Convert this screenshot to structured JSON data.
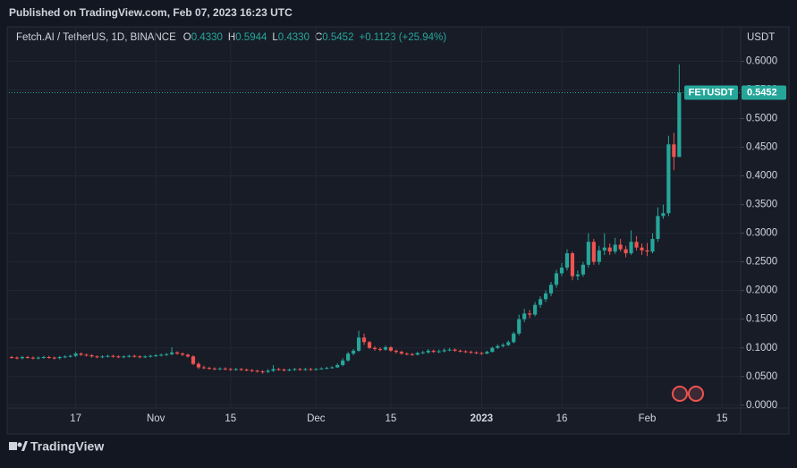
{
  "header": {
    "published": "Published on TradingView.com, Feb 07, 2023 16:23 UTC"
  },
  "footer": {
    "brand": "TradingView"
  },
  "chart_data": {
    "type": "candlestick",
    "title": "Fetch.AI / TetherUS, 1D, BINANCE",
    "legend_keys": [
      "O",
      "H",
      "L",
      "C"
    ],
    "legend_values": [
      "0.4330",
      "0.5944",
      "0.4330",
      "0.5452"
    ],
    "change": "+0.1123 (+25.94%)",
    "symbol": "FETUSDT",
    "last_price_label": "0.5452",
    "y_axis_label": "USDT",
    "up_color": "#26a69a",
    "down_color": "#ef5350",
    "grid": true,
    "categories": [
      null,
      null,
      null,
      null,
      null,
      null,
      null,
      null,
      null,
      null,
      null,
      null,
      "17",
      null,
      null,
      null,
      null,
      null,
      null,
      null,
      null,
      null,
      null,
      null,
      null,
      null,
      null,
      "Nov",
      null,
      null,
      null,
      null,
      null,
      null,
      null,
      null,
      null,
      null,
      null,
      null,
      null,
      "15",
      null,
      null,
      null,
      null,
      null,
      null,
      null,
      null,
      null,
      null,
      null,
      null,
      null,
      null,
      null,
      "Dec",
      null,
      null,
      null,
      null,
      null,
      null,
      null,
      null,
      null,
      null,
      null,
      null,
      null,
      "15",
      null,
      null,
      null,
      null,
      null,
      null,
      null,
      null,
      null,
      null,
      null,
      null,
      null,
      null,
      null,
      null,
      "2023",
      null,
      null,
      null,
      null,
      null,
      null,
      null,
      null,
      null,
      null,
      null,
      null,
      null,
      null,
      "16",
      null,
      null,
      null,
      null,
      null,
      null,
      null,
      null,
      null,
      null,
      null,
      null,
      null,
      null,
      null,
      "Feb",
      null,
      null,
      null,
      null,
      null,
      null,
      null,
      null,
      null,
      null,
      null,
      null,
      null,
      "15",
      null,
      null,
      null
    ],
    "open": [
      0.084,
      0.083,
      0.082,
      0.084,
      0.083,
      0.082,
      0.083,
      0.084,
      0.083,
      0.082,
      0.084,
      0.085,
      0.086,
      0.09,
      0.088,
      0.087,
      0.085,
      0.084,
      0.085,
      0.086,
      0.085,
      0.084,
      0.085,
      0.086,
      0.085,
      0.084,
      0.085,
      0.086,
      0.087,
      0.088,
      0.089,
      0.092,
      0.09,
      0.088,
      0.085,
      0.072,
      0.066,
      0.065,
      0.064,
      0.063,
      0.064,
      0.063,
      0.062,
      0.063,
      0.062,
      0.061,
      0.06,
      0.059,
      0.058,
      0.06,
      0.063,
      0.062,
      0.061,
      0.062,
      0.063,
      0.062,
      0.063,
      0.062,
      0.063,
      0.064,
      0.065,
      0.066,
      0.07,
      0.078,
      0.09,
      0.095,
      0.118,
      0.11,
      0.1,
      0.098,
      0.097,
      0.101,
      0.095,
      0.093,
      0.09,
      0.089,
      0.088,
      0.091,
      0.092,
      0.095,
      0.093,
      0.094,
      0.096,
      0.097,
      0.095,
      0.094,
      0.093,
      0.092,
      0.091,
      0.09,
      0.093,
      0.1,
      0.103,
      0.105,
      0.11,
      0.125,
      0.15,
      0.16,
      0.158,
      0.175,
      0.185,
      0.195,
      0.21,
      0.23,
      0.24,
      0.265,
      0.225,
      0.228,
      0.245,
      0.285,
      0.25,
      0.27,
      0.275,
      0.268,
      0.28,
      0.272,
      0.265,
      0.285,
      0.275,
      0.27,
      0.268,
      0.29,
      0.33,
      0.335,
      0.455,
      0.433,
      null,
      null,
      null,
      null,
      null,
      null,
      null,
      null,
      null,
      null,
      null
    ],
    "high": [
      0.086,
      0.085,
      0.086,
      0.086,
      0.085,
      0.085,
      0.086,
      0.086,
      0.085,
      0.086,
      0.087,
      0.088,
      0.093,
      0.092,
      0.09,
      0.089,
      0.087,
      0.087,
      0.088,
      0.088,
      0.087,
      0.087,
      0.088,
      0.088,
      0.087,
      0.087,
      0.088,
      0.089,
      0.09,
      0.091,
      0.101,
      0.094,
      0.092,
      0.09,
      0.087,
      0.075,
      0.069,
      0.067,
      0.066,
      0.066,
      0.066,
      0.065,
      0.065,
      0.065,
      0.064,
      0.063,
      0.062,
      0.061,
      0.063,
      0.07,
      0.065,
      0.064,
      0.064,
      0.065,
      0.065,
      0.065,
      0.065,
      0.065,
      0.066,
      0.067,
      0.068,
      0.073,
      0.082,
      0.093,
      0.098,
      0.13,
      0.125,
      0.112,
      0.103,
      0.101,
      0.104,
      0.103,
      0.097,
      0.095,
      0.092,
      0.091,
      0.093,
      0.095,
      0.098,
      0.097,
      0.097,
      0.099,
      0.1,
      0.099,
      0.097,
      0.096,
      0.095,
      0.094,
      0.093,
      0.095,
      0.102,
      0.106,
      0.108,
      0.113,
      0.128,
      0.158,
      0.168,
      0.166,
      0.18,
      0.19,
      0.2,
      0.215,
      0.236,
      0.248,
      0.272,
      0.268,
      0.235,
      0.25,
      0.3,
      0.29,
      0.278,
      0.3,
      0.282,
      0.292,
      0.29,
      0.278,
      0.305,
      0.295,
      0.282,
      0.283,
      0.3,
      0.345,
      0.35,
      0.47,
      0.475,
      0.5944,
      null,
      null,
      null,
      null,
      null,
      null,
      null,
      null,
      null,
      null,
      null
    ],
    "low": [
      0.081,
      0.08,
      0.08,
      0.081,
      0.08,
      0.08,
      0.081,
      0.081,
      0.08,
      0.08,
      0.082,
      0.083,
      0.084,
      0.086,
      0.085,
      0.083,
      0.082,
      0.082,
      0.083,
      0.083,
      0.082,
      0.082,
      0.083,
      0.083,
      0.082,
      0.082,
      0.083,
      0.084,
      0.085,
      0.086,
      0.087,
      0.088,
      0.086,
      0.083,
      0.07,
      0.063,
      0.063,
      0.062,
      0.061,
      0.061,
      0.061,
      0.06,
      0.06,
      0.06,
      0.059,
      0.058,
      0.057,
      0.055,
      0.056,
      0.058,
      0.06,
      0.059,
      0.059,
      0.06,
      0.06,
      0.06,
      0.06,
      0.061,
      0.062,
      0.063,
      0.064,
      0.065,
      0.068,
      0.076,
      0.087,
      0.093,
      0.105,
      0.098,
      0.095,
      0.094,
      0.095,
      0.093,
      0.09,
      0.088,
      0.087,
      0.086,
      0.087,
      0.089,
      0.09,
      0.091,
      0.091,
      0.092,
      0.094,
      0.093,
      0.092,
      0.091,
      0.09,
      0.089,
      0.088,
      0.089,
      0.092,
      0.098,
      0.101,
      0.103,
      0.108,
      0.122,
      0.145,
      0.152,
      0.155,
      0.17,
      0.18,
      0.19,
      0.205,
      0.225,
      0.235,
      0.218,
      0.218,
      0.224,
      0.24,
      0.245,
      0.245,
      0.262,
      0.262,
      0.264,
      0.268,
      0.258,
      0.262,
      0.27,
      0.262,
      0.26,
      0.265,
      0.285,
      0.325,
      0.33,
      0.41,
      0.433,
      null,
      null,
      null,
      null,
      null,
      null,
      null,
      null,
      null,
      null,
      null
    ],
    "close": [
      0.083,
      0.082,
      0.084,
      0.083,
      0.082,
      0.083,
      0.084,
      0.083,
      0.082,
      0.084,
      0.085,
      0.086,
      0.09,
      0.088,
      0.087,
      0.085,
      0.084,
      0.085,
      0.086,
      0.085,
      0.084,
      0.085,
      0.086,
      0.085,
      0.084,
      0.085,
      0.086,
      0.087,
      0.088,
      0.089,
      0.092,
      0.09,
      0.088,
      0.085,
      0.072,
      0.066,
      0.065,
      0.064,
      0.063,
      0.064,
      0.063,
      0.062,
      0.063,
      0.062,
      0.061,
      0.06,
      0.059,
      0.058,
      0.06,
      0.063,
      0.062,
      0.061,
      0.062,
      0.063,
      0.062,
      0.063,
      0.062,
      0.063,
      0.064,
      0.065,
      0.066,
      0.07,
      0.078,
      0.09,
      0.095,
      0.118,
      0.11,
      0.1,
      0.098,
      0.097,
      0.101,
      0.095,
      0.093,
      0.09,
      0.089,
      0.088,
      0.091,
      0.092,
      0.095,
      0.093,
      0.094,
      0.096,
      0.097,
      0.095,
      0.094,
      0.093,
      0.092,
      0.091,
      0.09,
      0.093,
      0.1,
      0.103,
      0.105,
      0.11,
      0.125,
      0.15,
      0.16,
      0.158,
      0.175,
      0.185,
      0.195,
      0.21,
      0.23,
      0.24,
      0.265,
      0.225,
      0.228,
      0.245,
      0.285,
      0.25,
      0.27,
      0.275,
      0.268,
      0.28,
      0.272,
      0.265,
      0.285,
      0.275,
      0.27,
      0.268,
      0.29,
      0.33,
      0.335,
      0.455,
      0.433,
      0.5452,
      null,
      null,
      null,
      null,
      null,
      null,
      null,
      null,
      null,
      null,
      null
    ],
    "ylim": [
      -0.005,
      0.66
    ],
    "yticks": [
      {
        "value": 0,
        "label": "0.0000"
      },
      {
        "value": 0.05,
        "label": "0.0500"
      },
      {
        "value": 0.1,
        "label": "0.1000"
      },
      {
        "value": 0.15,
        "label": "0.1500"
      },
      {
        "value": 0.2,
        "label": "0.2000"
      },
      {
        "value": 0.25,
        "label": "0.2500"
      },
      {
        "value": 0.3,
        "label": "0.3000"
      },
      {
        "value": 0.35,
        "label": "0.3500"
      },
      {
        "value": 0.4,
        "label": "0.4000"
      },
      {
        "value": 0.45,
        "label": "0.4500"
      },
      {
        "value": 0.5,
        "label": "0.5000"
      },
      {
        "value": 0.55,
        "label": "0.5500"
      },
      {
        "value": 0.6,
        "label": "0.6000"
      }
    ]
  }
}
